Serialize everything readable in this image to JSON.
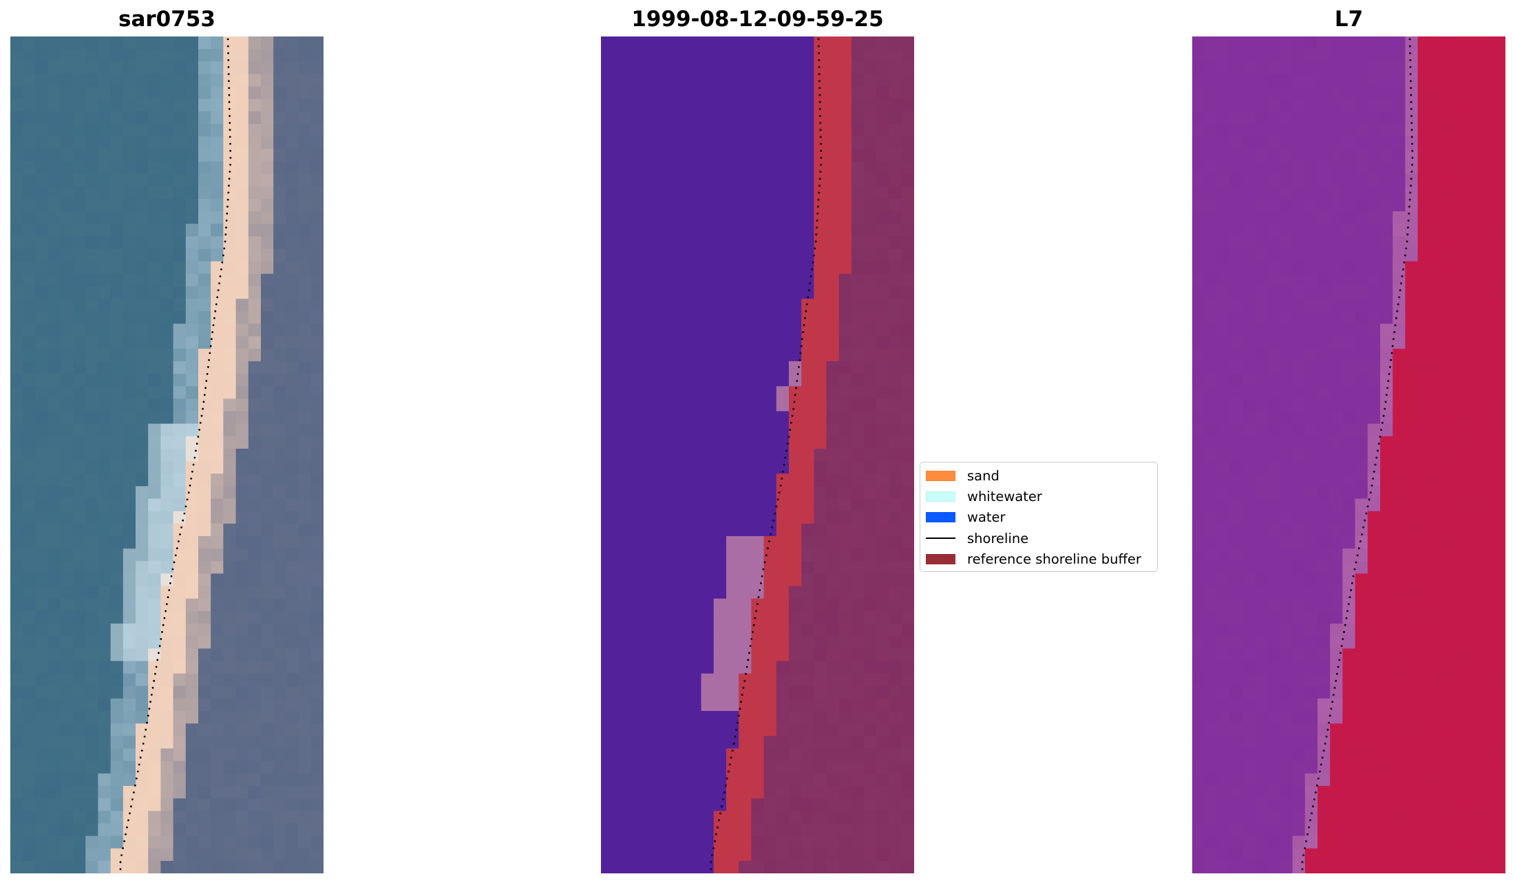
{
  "panels": [
    {
      "id": "rgb",
      "title": "sar0753"
    },
    {
      "id": "classified",
      "title": "1999-08-12-09-59-25"
    },
    {
      "id": "index",
      "title": "L7"
    }
  ],
  "legend": {
    "items": [
      {
        "label": "sand",
        "kind": "patch",
        "color": "#ff8c3c"
      },
      {
        "label": "whitewater",
        "kind": "patch",
        "color": "#c8fffa"
      },
      {
        "label": "water",
        "kind": "patch",
        "color": "#0a5aff"
      },
      {
        "label": "shoreline",
        "kind": "line",
        "color": "#000000"
      },
      {
        "label": "reference shoreline buffer",
        "kind": "patch",
        "color": "#9b2d37"
      }
    ]
  },
  "colors": {
    "water_dark": "#3d6b86",
    "sand_light": "#f3d2bb",
    "class_water": "#53229a",
    "class_buffer": "#c0374a",
    "class_land": "#7e2a60",
    "index_water": "#8a35a0",
    "index_land": "#c8184a"
  }
}
